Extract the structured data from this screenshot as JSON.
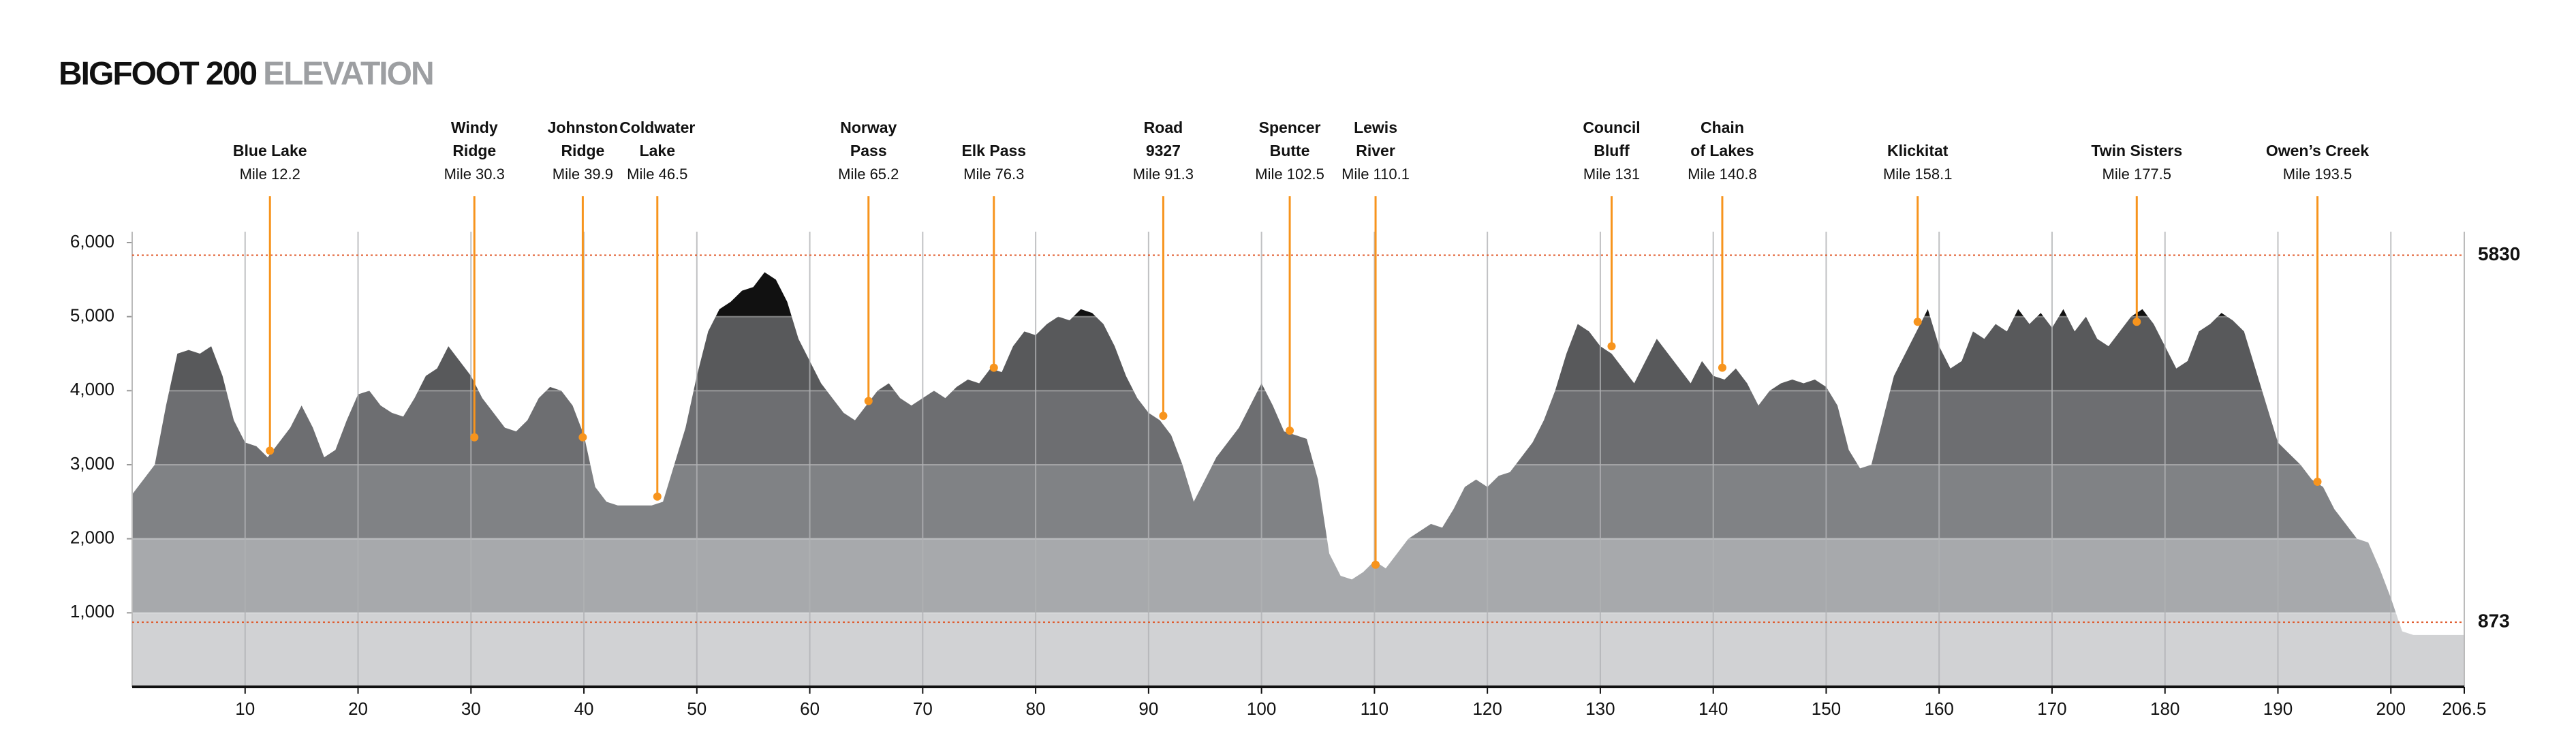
{
  "chart_data": {
    "type": "area",
    "title": "BIGFOOT 200",
    "subtitle": "ELEVATION",
    "x": [
      0,
      1,
      2,
      3,
      4,
      5,
      6,
      7,
      8,
      9,
      10,
      11,
      12,
      13,
      14,
      15,
      16,
      17,
      18,
      19,
      20,
      21,
      22,
      23,
      24,
      25,
      26,
      27,
      28,
      29,
      30,
      31,
      32,
      33,
      34,
      35,
      36,
      37,
      38,
      39,
      40,
      41,
      42,
      43,
      44,
      45,
      46,
      47,
      48,
      49,
      50,
      51,
      52,
      53,
      54,
      55,
      56,
      57,
      58,
      59,
      60,
      61,
      62,
      63,
      64,
      65,
      66,
      67,
      68,
      69,
      70,
      71,
      72,
      73,
      74,
      75,
      76,
      77,
      78,
      79,
      80,
      81,
      82,
      83,
      84,
      85,
      86,
      87,
      88,
      89,
      90,
      91,
      92,
      93,
      94,
      95,
      96,
      97,
      98,
      99,
      100,
      101,
      102,
      103,
      104,
      105,
      106,
      107,
      108,
      109,
      110,
      111,
      112,
      113,
      114,
      115,
      116,
      117,
      118,
      119,
      120,
      121,
      122,
      123,
      124,
      125,
      126,
      127,
      128,
      129,
      130,
      131,
      132,
      133,
      134,
      135,
      136,
      137,
      138,
      139,
      140,
      141,
      142,
      143,
      144,
      145,
      146,
      147,
      148,
      149,
      150,
      151,
      152,
      153,
      154,
      155,
      156,
      157,
      158,
      159,
      160,
      161,
      162,
      163,
      164,
      165,
      166,
      167,
      168,
      169,
      170,
      171,
      172,
      173,
      174,
      175,
      176,
      177,
      178,
      179,
      180,
      181,
      182,
      183,
      184,
      185,
      186,
      187,
      188,
      189,
      190,
      191,
      192,
      193,
      194,
      195,
      196,
      197,
      198,
      199,
      200,
      201,
      202,
      206.5
    ],
    "values": [
      2600,
      2800,
      3000,
      3800,
      4500,
      4550,
      4500,
      4600,
      4200,
      3600,
      3300,
      3250,
      3100,
      3300,
      3500,
      3800,
      3500,
      3100,
      3200,
      3600,
      3950,
      4000,
      3800,
      3700,
      3650,
      3900,
      4200,
      4300,
      4600,
      4400,
      4200,
      3900,
      3700,
      3500,
      3450,
      3600,
      3900,
      4050,
      4000,
      3800,
      3400,
      2700,
      2500,
      2450,
      2450,
      2450,
      2450,
      2500,
      3000,
      3500,
      4200,
      4800,
      5100,
      5200,
      5350,
      5400,
      5600,
      5500,
      5200,
      4700,
      4400,
      4100,
      3900,
      3700,
      3600,
      3800,
      4000,
      4100,
      3900,
      3800,
      3900,
      4000,
      3900,
      4050,
      4150,
      4100,
      4300,
      4250,
      4600,
      4800,
      4750,
      4900,
      5000,
      4950,
      5100,
      5050,
      4900,
      4600,
      4200,
      3900,
      3700,
      3600,
      3400,
      3000,
      2500,
      2800,
      3100,
      3300,
      3500,
      3800,
      4100,
      3800,
      3450,
      3400,
      3350,
      2800,
      1800,
      1500,
      1450,
      1550,
      1700,
      1600,
      1800,
      2000,
      2100,
      2200,
      2150,
      2400,
      2700,
      2800,
      2700,
      2850,
      2900,
      3100,
      3300,
      3600,
      4000,
      4500,
      4900,
      4800,
      4600,
      4500,
      4300,
      4100,
      4400,
      4700,
      4500,
      4300,
      4100,
      4400,
      4200,
      4150,
      4300,
      4100,
      3800,
      4000,
      4100,
      4150,
      4100,
      4150,
      4050,
      3800,
      3200,
      2950,
      3000,
      3600,
      4200,
      4500,
      4800,
      5100,
      4600,
      4300,
      4400,
      4800,
      4700,
      4900,
      4800,
      5100,
      4900,
      5050,
      4850,
      5100,
      4800,
      5000,
      4700,
      4600,
      4800,
      5000,
      5100,
      4900,
      4600,
      4300,
      4400,
      4800,
      4900,
      5050,
      4950,
      4800,
      4300,
      3800,
      3300,
      3150,
      3000,
      2800,
      2700,
      2400,
      2200,
      2000,
      1950,
      1600,
      1200,
      750,
      700,
      700
    ],
    "band_colors": [
      "#d1d2d4",
      "#a7a9ac",
      "#808285",
      "#6d6e71",
      "#58595b",
      "#111111"
    ],
    "xlim": [
      0,
      206.5
    ],
    "ylim": [
      0,
      6000
    ],
    "xticks": [
      10,
      20,
      30,
      40,
      50,
      60,
      70,
      80,
      90,
      100,
      110,
      120,
      130,
      140,
      150,
      160,
      170,
      180,
      190,
      200,
      206.5
    ],
    "yticks": [
      {
        "value": 1000,
        "label": "1,000"
      },
      {
        "value": 2000,
        "label": "2,000"
      },
      {
        "value": 3000,
        "label": "3,000"
      },
      {
        "value": 4000,
        "label": "4,000"
      },
      {
        "value": 5000,
        "label": "5,000"
      },
      {
        "value": 6000,
        "label": "6,000"
      }
    ],
    "grid": true,
    "ref_lines": [
      {
        "value": 5830,
        "color": "#e0592a"
      },
      {
        "value": 873,
        "color": "#e0592a"
      }
    ],
    "waypoint_color": "#f7941d",
    "waypoints": [
      {
        "name_lines": [
          "Blue Lake"
        ],
        "mile_label": "Mile 12.2",
        "mile": 12.2,
        "elev": 3190
      },
      {
        "name_lines": [
          "Windy",
          "Ridge"
        ],
        "mile_label": "Mile 30.3",
        "mile": 30.3,
        "elev": 3370
      },
      {
        "name_lines": [
          "Johnston",
          "Ridge"
        ],
        "mile_label": "Mile 39.9",
        "mile": 39.9,
        "elev": 3370
      },
      {
        "name_lines": [
          "Coldwater",
          "Lake"
        ],
        "mile_label": "Mile 46.5",
        "mile": 46.5,
        "elev": 2570
      },
      {
        "name_lines": [
          "Norway",
          "Pass"
        ],
        "mile_label": "Mile 65.2",
        "mile": 65.2,
        "elev": 3860
      },
      {
        "name_lines": [
          "Elk Pass"
        ],
        "mile_label": "Mile 76.3",
        "mile": 76.3,
        "elev": 4310
      },
      {
        "name_lines": [
          "Road",
          "9327"
        ],
        "mile_label": "Mile 91.3",
        "mile": 91.3,
        "elev": 3660
      },
      {
        "name_lines": [
          "Spencer",
          "Butte"
        ],
        "mile_label": "Mile 102.5",
        "mile": 102.5,
        "elev": 3460
      },
      {
        "name_lines": [
          "Lewis",
          "River"
        ],
        "mile_label": "Mile 110.1",
        "mile": 110.1,
        "elev": 1650
      },
      {
        "name_lines": [
          "Council",
          "Bluff"
        ],
        "mile_label": "Mile 131",
        "mile": 131,
        "elev": 4600
      },
      {
        "name_lines": [
          "Chain",
          "of Lakes"
        ],
        "mile_label": "Mile 140.8",
        "mile": 140.8,
        "elev": 4310
      },
      {
        "name_lines": [
          "Klickitat"
        ],
        "mile_label": "Mile 158.1",
        "mile": 158.1,
        "elev": 4930
      },
      {
        "name_lines": [
          "Twin Sisters"
        ],
        "mile_label": "Mile 177.5",
        "mile": 177.5,
        "elev": 4930
      },
      {
        "name_lines": [
          "Owen’s Creek"
        ],
        "mile_label": "Mile 193.5",
        "mile": 193.5,
        "elev": 2770
      }
    ]
  }
}
